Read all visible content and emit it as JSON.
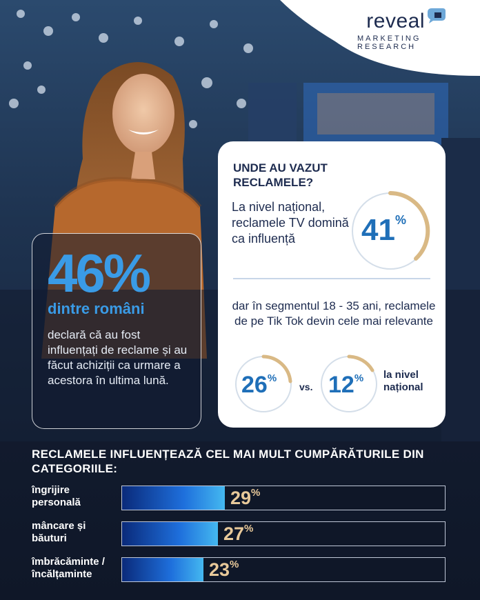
{
  "brand": {
    "name": "reveal",
    "sub": "MARKETING RESEARCH"
  },
  "left_card": {
    "percent": "46%",
    "subtitle": "dintre români",
    "text": "declară că au fost influențați de reclame și au făcut achiziții ca urmare a acestora în ultima lună."
  },
  "right_card": {
    "heading": "UNDE AU VAZUT RECLAMELE?",
    "national_text": "La nivel național, reclamele TV domină ca influență",
    "national_value": "41",
    "segment_text": "dar în segmentul 18 - 35 ani, reclamele de pe Tik Tok devin cele mai relevante",
    "segment_value": "26",
    "vs": "vs.",
    "national_compare_value": "12",
    "national_compare_label": "la nivel național",
    "pct_sign": "%"
  },
  "categories": {
    "title": "RECLAMELE INFLUENȚEAZĂ CEL MAI MULT CUMPĂRĂTURILE DIN CATEGORIILE:",
    "items": [
      {
        "label": "îngrijire personală",
        "value": 29,
        "display": "29"
      },
      {
        "label": "mâncare și băuturi",
        "value": 27,
        "display": "27"
      },
      {
        "label": "îmbrăcăminte /încălțaminte",
        "value": 23,
        "display": "23"
      }
    ]
  },
  "colors": {
    "accent_blue": "#3a9be6",
    "navy": "#1d2b4f",
    "gold": "#d9b985"
  }
}
